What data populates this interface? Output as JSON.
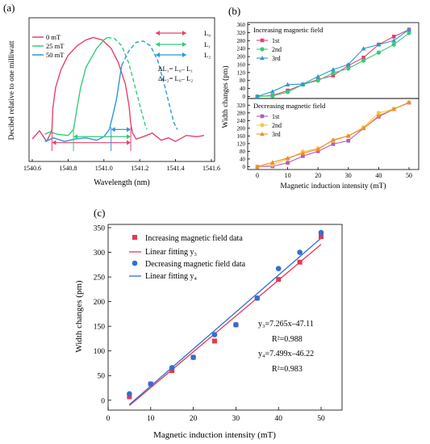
{
  "chart_data": [
    {
      "panel_label": "(a)",
      "type": "line",
      "xlabel": "Wavelength (nm)",
      "ylabel": "Decibel relative to one milliwatt",
      "xlim": [
        1540.6,
        1541.6
      ],
      "xticks": [
        "1540.6",
        "1540.8",
        "1541.0",
        "1541.2",
        "1541.4",
        "1541.6"
      ],
      "colors": {
        "s0": "#e8406e",
        "s25": "#33cc77",
        "s50": "#2b9ad4"
      },
      "series": [
        {
          "name": "0 mT",
          "style": "solid",
          "x": [
            1540.6,
            1540.64,
            1540.68,
            1540.7,
            1540.71,
            1540.715,
            1540.73,
            1540.76,
            1540.8,
            1540.85,
            1540.9,
            1540.94,
            1540.99,
            1541.04,
            1541.08,
            1541.12,
            1541.14,
            1541.15,
            1541.16,
            1541.18,
            1541.22,
            1541.27,
            1541.32,
            1541.36,
            1541.4,
            1541.46,
            1541.52,
            1541.56
          ],
          "y": [
            0.12,
            0.19,
            0.1,
            0.16,
            0.2,
            0.38,
            0.55,
            0.7,
            0.82,
            0.9,
            0.95,
            0.97,
            0.95,
            0.88,
            0.76,
            0.58,
            0.4,
            0.25,
            0.17,
            0.12,
            0.14,
            0.17,
            0.11,
            0.13,
            0.1,
            0.15,
            0.14,
            0.15
          ]
        },
        {
          "name": "25 mT",
          "style": "solid",
          "x": [
            1540.67,
            1540.7,
            1540.74,
            1540.8,
            1540.83,
            1540.85,
            1540.87,
            1540.9,
            1540.96,
            1541.0,
            1541.02
          ],
          "y": [
            0.16,
            0.18,
            0.16,
            0.15,
            0.2,
            0.38,
            0.55,
            0.72,
            0.88,
            0.95,
            0.97
          ]
        },
        {
          "name": "",
          "style": "dashed",
          "x": [
            1541.02,
            1541.06,
            1541.1,
            1541.14,
            1541.18,
            1541.21,
            1541.23,
            1541.24
          ],
          "y": [
            0.97,
            0.96,
            0.9,
            0.75,
            0.52,
            0.35,
            0.24,
            0.2
          ]
        },
        {
          "name": "50 mT",
          "style": "solid",
          "x": [
            1540.67,
            1540.72,
            1540.78,
            1540.84,
            1540.9,
            1540.96,
            1541.0,
            1541.03,
            1541.05,
            1541.07,
            1541.08,
            1541.09,
            1541.1
          ],
          "y": [
            0.1,
            0.13,
            0.1,
            0.12,
            0.13,
            0.11,
            0.14,
            0.2,
            0.32,
            0.45,
            0.55,
            0.65,
            0.74
          ]
        },
        {
          "name": "",
          "style": "dashed",
          "x": [
            1541.1,
            1541.14,
            1541.18,
            1541.22,
            1541.26,
            1541.3,
            1541.34,
            1541.37,
            1541.39,
            1541.41
          ],
          "y": [
            0.74,
            0.86,
            0.93,
            0.94,
            0.9,
            0.78,
            0.56,
            0.38,
            0.26,
            0.2
          ]
        }
      ],
      "legend_lines": [
        "0  mT",
        "25 mT",
        "50 mT"
      ],
      "legend_arrows": [
        "L₀",
        "L₁",
        "L₂"
      ],
      "equations": [
        "ΔL₁= L₀– L₁",
        "ΔL₂= L₀– L₂"
      ],
      "arrow_spans": [
        {
          "name": "L0",
          "from": 1540.71,
          "to": 1541.15
        },
        {
          "name": "L1",
          "from": 1540.83,
          "to": 1541.15
        },
        {
          "name": "L2",
          "from": 1541.04,
          "to": 1541.15
        }
      ]
    },
    {
      "panel_label": "(b)",
      "type": "line",
      "xlabel": "Magnetic induction intensity (mT)",
      "ylabel": "Width changes (pm)",
      "x": [
        0,
        5,
        10,
        15,
        20,
        25,
        30,
        35,
        40,
        45,
        50
      ],
      "xticks": [
        "0",
        "10",
        "20",
        "30",
        "40",
        "50"
      ],
      "subplots": [
        {
          "title": "Increasing magnetic field",
          "yticks": [
            "0",
            "40",
            "80",
            "120",
            "160",
            "200",
            "240",
            "280",
            "320",
            "360"
          ],
          "ylim": [
            -10,
            370
          ],
          "series": [
            {
              "name": "1st",
              "marker": "square",
              "color": "#e8406e",
              "values": [
                0,
                5,
                30,
                60,
                85,
                105,
                155,
                195,
                260,
                300,
                335
              ]
            },
            {
              "name": "2nd",
              "marker": "circle",
              "color": "#33cc77",
              "values": [
                0,
                3,
                22,
                60,
                80,
                118,
                140,
                180,
                220,
                260,
                318
              ]
            },
            {
              "name": "3rd",
              "marker": "triangle",
              "color": "#2b9ad4",
              "values": [
                0,
                25,
                60,
                62,
                100,
                135,
                160,
                240,
                260,
                280,
                335
              ]
            }
          ]
        },
        {
          "title": "Decreasing magnetic field",
          "yticks": [
            "0",
            "40",
            "80",
            "120",
            "160",
            "200",
            "240",
            "280",
            "320"
          ],
          "ylim": [
            -15,
            355
          ],
          "series": [
            {
              "name": "1st",
              "marker": "square",
              "color": "#b15bc4",
              "values": [
                0,
                2,
                20,
                55,
                80,
                118,
                135,
                200,
                260,
                300,
                333
              ]
            },
            {
              "name": "2nd",
              "marker": "circle",
              "color": "#f5c84c",
              "values": [
                0,
                10,
                40,
                78,
                95,
                135,
                160,
                205,
                280,
                300,
                335
              ]
            },
            {
              "name": "3rd",
              "marker": "triangle",
              "color": "#f08c28",
              "values": [
                0,
                22,
                45,
                70,
                90,
                140,
                160,
                200,
                265,
                300,
                335
              ]
            }
          ]
        }
      ]
    },
    {
      "panel_label": "(c)",
      "type": "scatter",
      "xlabel": "Magnetic induction intensity (mT)",
      "ylabel": "Width changes (pm)",
      "xlim": [
        0,
        50
      ],
      "ylim": [
        -20,
        350
      ],
      "xticks": [
        "0",
        "10",
        "20",
        "30",
        "40",
        "50"
      ],
      "yticks": [
        "0",
        "50",
        "100",
        "150",
        "200",
        "250",
        "300",
        "350"
      ],
      "series": [
        {
          "name": "Increasing magnetic field data",
          "marker": "square",
          "color": "#e8384f",
          "x": [
            5,
            10,
            15,
            20,
            25,
            30,
            35,
            40,
            45,
            50
          ],
          "y": [
            7,
            33,
            60,
            87,
            120,
            153,
            207,
            245,
            280,
            332
          ]
        },
        {
          "name": "Decreasing magnetic field data",
          "marker": "circle",
          "color": "#2f6fd6",
          "x": [
            5,
            10,
            15,
            20,
            25,
            30,
            35,
            40,
            45,
            50
          ],
          "y": [
            13,
            33,
            66,
            87,
            133,
            153,
            207,
            267,
            300,
            340
          ]
        }
      ],
      "fits": [
        {
          "name": "Linear fitting y₃",
          "color": "#e8384f",
          "slope": 7.265,
          "intercept": -47.11,
          "x": [
            5,
            50
          ]
        },
        {
          "name": "Linear fitting y₄",
          "color": "#2f6fd6",
          "slope": 7.499,
          "intercept": -46.22,
          "x": [
            5,
            50
          ]
        }
      ],
      "annotations": [
        "y₃=7.265x–47.11",
        "R²=0.988",
        "y₄=7.499x–46.22",
        "R²=0.983"
      ]
    }
  ]
}
